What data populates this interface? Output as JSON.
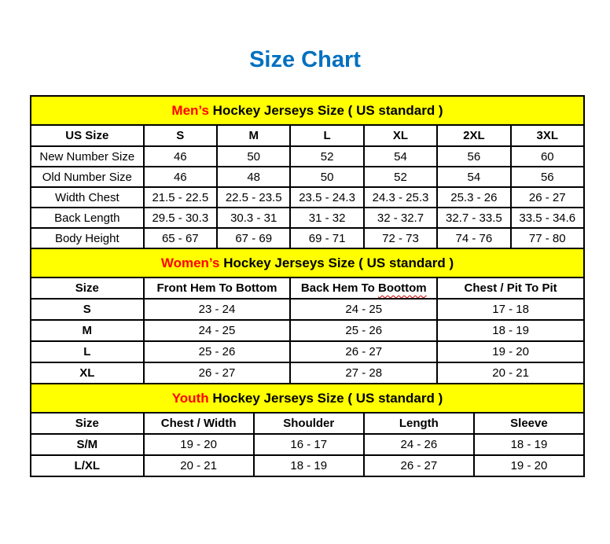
{
  "page": {
    "title": "Size Chart",
    "title_color": "#0070C0"
  },
  "colors": {
    "section_header_bg": "#FFFF00",
    "section_keyword_color": "#FF0000",
    "border_color": "#000000",
    "text_color": "#000000"
  },
  "tables": [
    {
      "id": "mens",
      "keyword": "Men’s",
      "heading_rest": " Hockey Jerseys Size ( US standard )",
      "columns": [
        "US Size",
        "S",
        "M",
        "L",
        "XL",
        "2XL",
        "3XL"
      ],
      "rows": [
        [
          "New Number Size",
          "46",
          "50",
          "52",
          "54",
          "56",
          "60"
        ],
        [
          "Old Number Size",
          "46",
          "48",
          "50",
          "52",
          "54",
          "56"
        ],
        [
          "Width Chest",
          "21.5 - 22.5",
          "22.5 - 23.5",
          "23.5 - 24.3",
          "24.3 - 25.3",
          "25.3 - 26",
          "26 - 27"
        ],
        [
          "Back Length",
          "29.5 - 30.3",
          "30.3 - 31",
          "31 - 32",
          "32 - 32.7",
          "32.7 - 33.5",
          "33.5 - 34.6"
        ],
        [
          "Body Height",
          "65 - 67",
          "67 - 69",
          "69 - 71",
          "72 - 73",
          "74 - 76",
          "77 - 80"
        ]
      ]
    },
    {
      "id": "womens",
      "keyword": "Women’s",
      "heading_rest": " Hockey Jerseys Size ( US standard )",
      "squiggle_word": "Boottom",
      "columns": [
        "Size",
        "Front Hem To Bottom",
        "Back Hem To Boottom",
        "Chest / Pit To Pit"
      ],
      "rows": [
        [
          "S",
          "23 - 24",
          "24 - 25",
          "17 - 18"
        ],
        [
          "M",
          "24 - 25",
          "25 - 26",
          "18 - 19"
        ],
        [
          "L",
          "25 - 26",
          "26 - 27",
          "19 - 20"
        ],
        [
          "XL",
          "26 - 27",
          "27 - 28",
          "20 - 21"
        ]
      ]
    },
    {
      "id": "youth",
      "keyword": "Youth",
      "heading_rest": " Hockey Jerseys Size ( US standard )",
      "columns": [
        "Size",
        "Chest / Width",
        "Shoulder",
        "Length",
        "Sleeve"
      ],
      "rows": [
        [
          "S/M",
          "19 - 20",
          "16 - 17",
          "24 - 26",
          "18 - 19"
        ],
        [
          "L/XL",
          "20 - 21",
          "18 - 19",
          "26 - 27",
          "19 - 20"
        ]
      ]
    }
  ]
}
